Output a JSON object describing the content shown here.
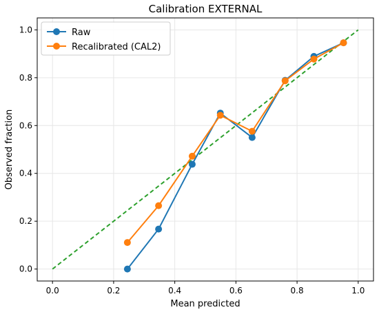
{
  "chart_data": {
    "type": "line",
    "title": "Calibration EXTERNAL",
    "xlabel": "Mean predicted",
    "ylabel": "Observed fraction",
    "xlim": [
      -0.05,
      1.05
    ],
    "ylim": [
      -0.05,
      1.05
    ],
    "xticks": [
      "0.0",
      "0.2",
      "0.4",
      "0.6",
      "0.8",
      "1.0"
    ],
    "yticks": [
      "0.0",
      "0.2",
      "0.4",
      "0.6",
      "0.8",
      "1.0"
    ],
    "grid": true,
    "legend_position": "upper-left",
    "reference_line": {
      "x": [
        0,
        1
      ],
      "y": [
        0,
        1
      ],
      "color": "#2ca02c",
      "style": "dashed"
    },
    "series": [
      {
        "name": "Raw",
        "color": "#1f77b4",
        "marker": "circle",
        "x": [
          0.245,
          0.347,
          0.457,
          0.549,
          0.653,
          0.761,
          0.855,
          0.952
        ],
        "y": [
          0.0,
          0.167,
          0.438,
          0.652,
          0.55,
          0.789,
          0.889,
          0.946
        ]
      },
      {
        "name": "Recalibrated (CAL2)",
        "color": "#ff7f0e",
        "marker": "circle",
        "x": [
          0.245,
          0.347,
          0.457,
          0.549,
          0.653,
          0.761,
          0.855,
          0.952
        ],
        "y": [
          0.111,
          0.265,
          0.472,
          0.643,
          0.576,
          0.787,
          0.878,
          0.946
        ]
      }
    ]
  }
}
